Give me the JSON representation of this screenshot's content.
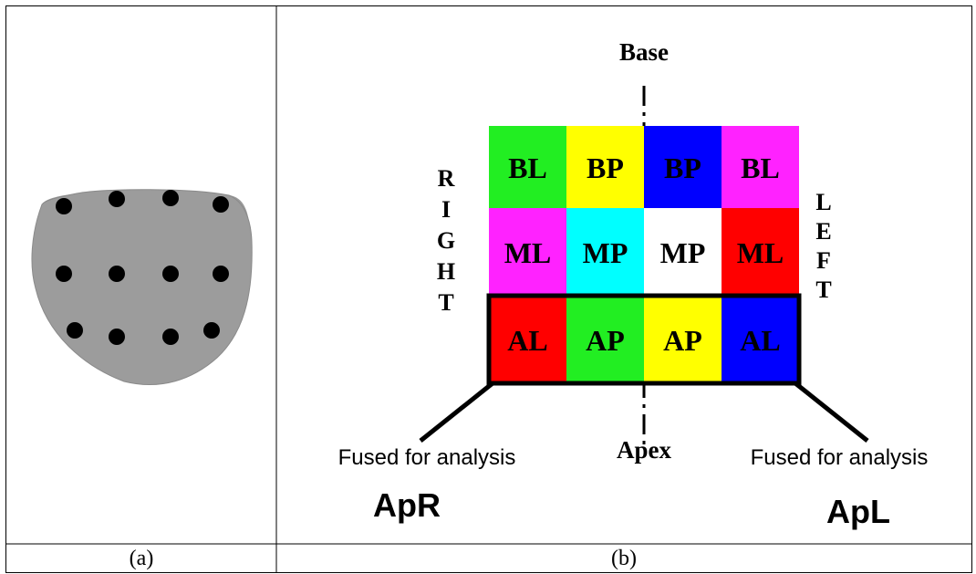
{
  "panel_b": {
    "top_label": "Base",
    "bottom_label": "Apex",
    "side_right_letters": [
      "R",
      "I",
      "G",
      "H",
      "T"
    ],
    "side_left_letters": [
      "L",
      "E",
      "F",
      "T"
    ],
    "rows": [
      {
        "cells": [
          {
            "label": "BL",
            "color": "#22ee22"
          },
          {
            "label": "BP",
            "color": "#ffff00"
          },
          {
            "label": "BP",
            "color": "#0000ff"
          },
          {
            "label": "BL",
            "color": "#ff22ff"
          }
        ]
      },
      {
        "cells": [
          {
            "label": "ML",
            "color": "#ff22ff"
          },
          {
            "label": "MP",
            "color": "#00ffff"
          },
          {
            "label": "MP",
            "color": "#ffffff"
          },
          {
            "label": "ML",
            "color": "#ff0000"
          }
        ]
      },
      {
        "cells": [
          {
            "label": "AL",
            "color": "#ff0000"
          },
          {
            "label": "AP",
            "color": "#22ee22"
          },
          {
            "label": "AP",
            "color": "#ffff00"
          },
          {
            "label": "AL",
            "color": "#0000ff"
          }
        ]
      }
    ],
    "fused_left": {
      "note": "Fused for analysis",
      "code": "ApR"
    },
    "fused_right": {
      "note": "Fused for analysis",
      "code": "ApL"
    }
  },
  "captions": {
    "a": "(a)",
    "b": "(b)"
  }
}
